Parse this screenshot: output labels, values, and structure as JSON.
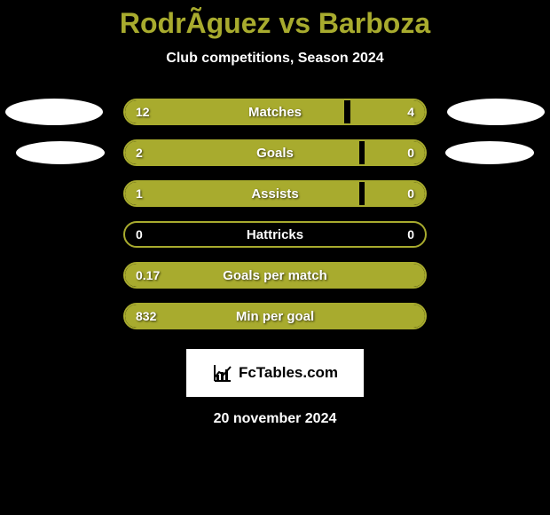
{
  "title": "RodrÃ­guez vs Barboza",
  "subtitle": "Club competitions, Season 2024",
  "colors": {
    "background": "#000000",
    "accent": "#a8ab2e",
    "text": "#ffffff",
    "ellipse": "#ffffff",
    "watermark_bg": "#ffffff",
    "watermark_text": "#000000"
  },
  "stats": [
    {
      "label": "Matches",
      "left_value": "12",
      "right_value": "4",
      "left_pct": 73,
      "right_pct": 25,
      "show_ellipses": true,
      "ellipse_style": 1
    },
    {
      "label": "Goals",
      "left_value": "2",
      "right_value": "0",
      "left_pct": 78,
      "right_pct": 20,
      "show_ellipses": true,
      "ellipse_style": 2
    },
    {
      "label": "Assists",
      "left_value": "1",
      "right_value": "0",
      "left_pct": 78,
      "right_pct": 20,
      "show_ellipses": false,
      "ellipse_style": 0
    },
    {
      "label": "Hattricks",
      "left_value": "0",
      "right_value": "0",
      "left_pct": 0,
      "right_pct": 0,
      "show_ellipses": false,
      "ellipse_style": 0
    },
    {
      "label": "Goals per match",
      "left_value": "0.17",
      "right_value": "",
      "left_pct": 100,
      "right_pct": 0,
      "show_ellipses": false,
      "ellipse_style": 0
    },
    {
      "label": "Min per goal",
      "left_value": "832",
      "right_value": "",
      "left_pct": 100,
      "right_pct": 0,
      "show_ellipses": false,
      "ellipse_style": 0
    }
  ],
  "watermark": "FcTables.com",
  "date": "20 november 2024"
}
